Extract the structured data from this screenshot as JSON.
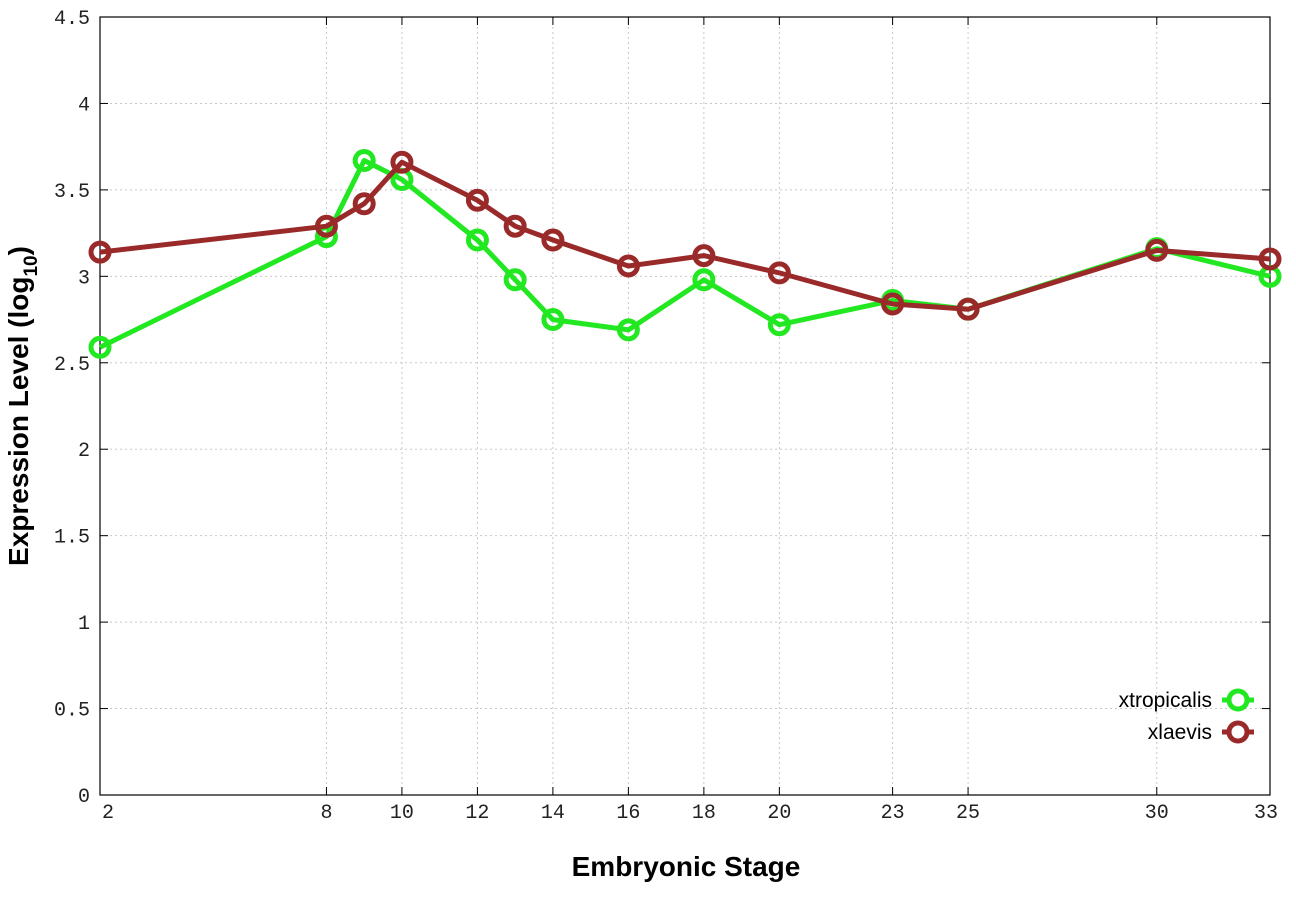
{
  "chart_data": {
    "type": "line",
    "title": "",
    "xlabel": "Embryonic Stage",
    "ylabel_main": "Expression Level (log",
    "ylabel_sub": "10",
    "ylabel_close": ")",
    "xlim": [
      2,
      33
    ],
    "ylim": [
      0,
      4.5
    ],
    "grid": true,
    "legend_position": "bottom-right",
    "x_ticks": [
      2,
      8,
      10,
      12,
      14,
      16,
      18,
      20,
      23,
      25,
      30,
      33
    ],
    "y_ticks": [
      0,
      0.5,
      1,
      1.5,
      2,
      2.5,
      3,
      3.5,
      4,
      4.5
    ],
    "y_tick_labels": [
      "0",
      "0.5",
      "1",
      "1.5",
      "2",
      "2.5",
      "3",
      "3.5",
      "4",
      "4.5"
    ],
    "series": [
      {
        "name": "xtropicalis",
        "color": "#22e822",
        "x": [
          2,
          8,
          9,
          10,
          12,
          13,
          14,
          16,
          18,
          20,
          23,
          25,
          30,
          33
        ],
        "y": [
          2.59,
          3.23,
          3.67,
          3.56,
          3.21,
          2.98,
          2.75,
          2.69,
          2.98,
          2.72,
          2.86,
          2.81,
          3.16,
          3.0
        ]
      },
      {
        "name": "xlaevis",
        "color": "#9a2a2a",
        "x": [
          2,
          8,
          9,
          10,
          12,
          13,
          14,
          16,
          18,
          20,
          23,
          25,
          30,
          33
        ],
        "y": [
          3.14,
          3.29,
          3.42,
          3.66,
          3.44,
          3.29,
          3.21,
          3.06,
          3.12,
          3.02,
          2.84,
          2.81,
          3.15,
          3.1
        ]
      }
    ]
  }
}
